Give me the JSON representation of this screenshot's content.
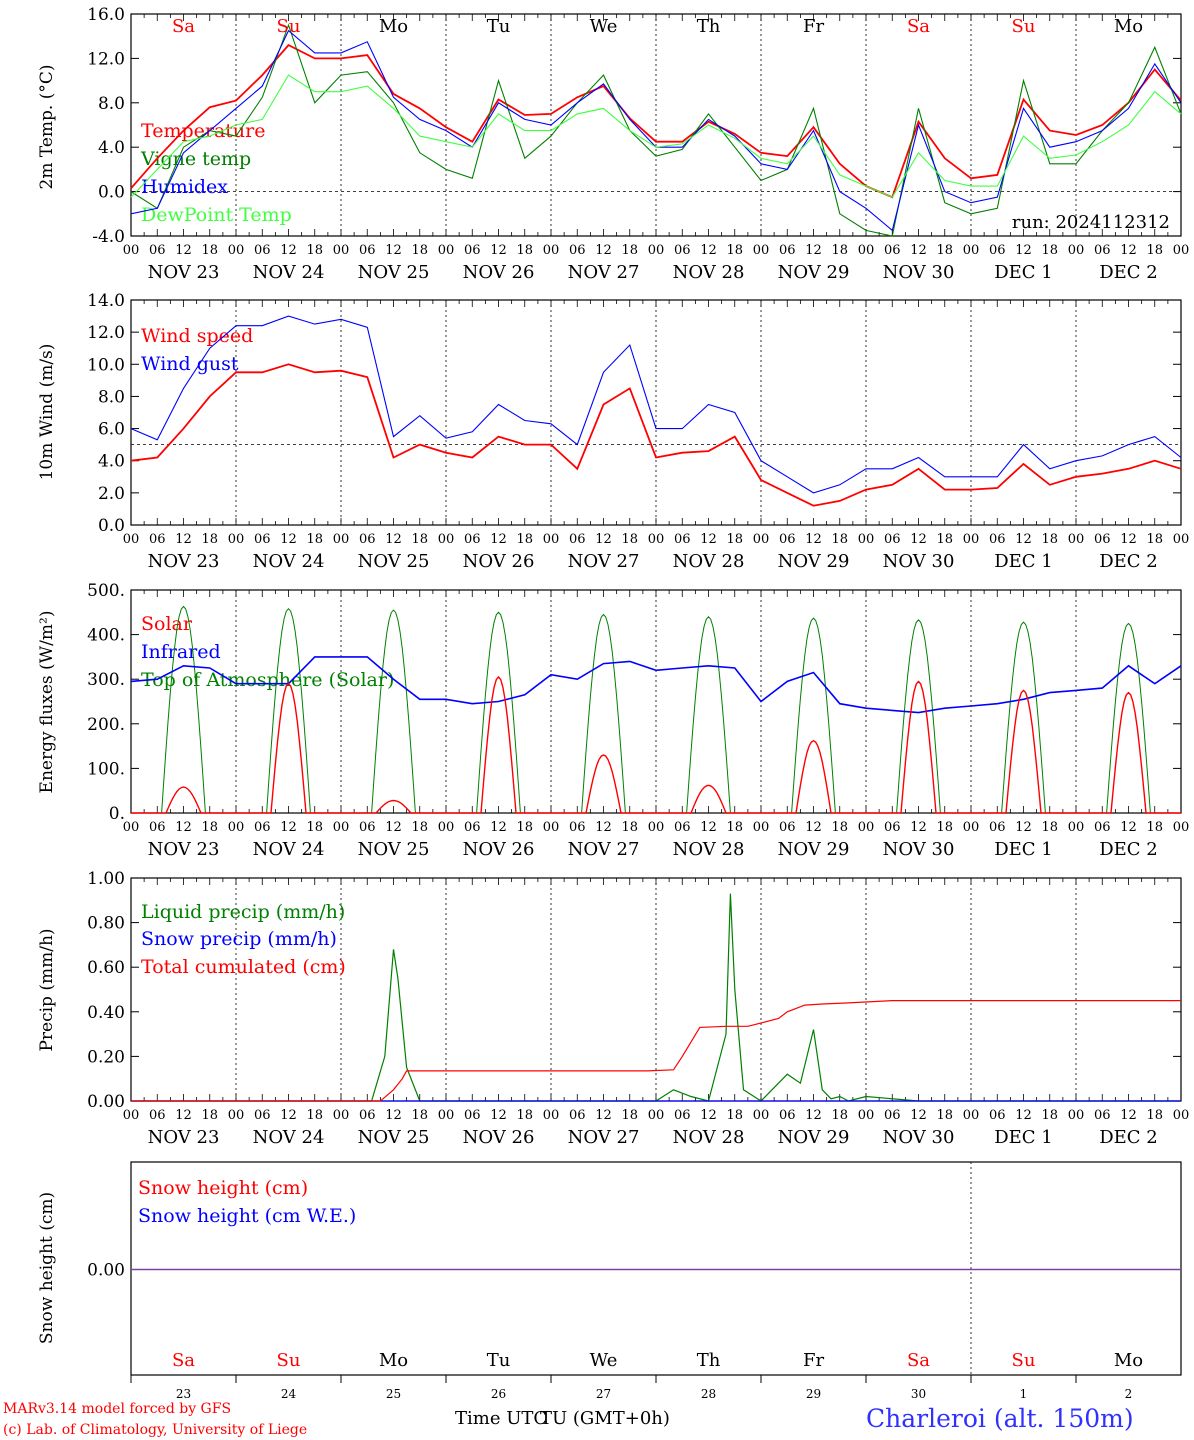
{
  "chart_data": [
    {
      "type": "line",
      "ylabel": "2m Temp. (°C)",
      "ylim": [
        -4,
        16
      ],
      "yticks": [
        "-4.0",
        "0.0",
        "4.0",
        "8.0",
        "12.0",
        "16.0"
      ],
      "ref_line": 0,
      "run_label": "run: 2024112312",
      "x": [
        0,
        6,
        12,
        18,
        24,
        30,
        36,
        42,
        48,
        54,
        60,
        66,
        72,
        78,
        84,
        90,
        96,
        102,
        108,
        114,
        120,
        126,
        132,
        138,
        144,
        150,
        156,
        162,
        168,
        174,
        180,
        186,
        192,
        198,
        204,
        210,
        216,
        222,
        228,
        234,
        240
      ],
      "series": [
        {
          "name": "Temperature",
          "color": "#ff0000",
          "values": [
            0.3,
            3.0,
            5.5,
            7.6,
            8.2,
            10.5,
            13.2,
            12.0,
            12.0,
            12.3,
            8.8,
            7.5,
            5.8,
            4.5,
            8.3,
            6.9,
            7.0,
            8.5,
            9.5,
            6.6,
            4.5,
            4.5,
            6.3,
            5.2,
            3.5,
            3.2,
            5.8,
            2.5,
            0.5,
            -0.5,
            6.3,
            3.0,
            1.2,
            1.5,
            8.3,
            5.5,
            5.1,
            6.0,
            8.0,
            11.0,
            8.2
          ]
        },
        {
          "name": "Vigne temp",
          "color": "#008000",
          "values": [
            0.0,
            -1.5,
            4.0,
            5.5,
            5.0,
            8.5,
            15.0,
            8.0,
            10.5,
            10.8,
            8.0,
            3.5,
            2.0,
            1.2,
            10.0,
            3.0,
            5.0,
            8.0,
            10.5,
            5.5,
            3.2,
            3.8,
            7.0,
            4.0,
            1.0,
            2.0,
            7.5,
            -2.0,
            -3.5,
            -4.0,
            7.5,
            -1.0,
            -2.0,
            -1.5,
            10.0,
            2.5,
            2.5,
            5.5,
            8.0,
            13.0,
            7.0
          ]
        },
        {
          "name": "Humidex",
          "color": "#0000ff",
          "values": [
            -2.0,
            -1.5,
            3.5,
            5.5,
            7.5,
            9.5,
            14.5,
            12.5,
            12.5,
            13.5,
            8.5,
            6.5,
            5.5,
            4.0,
            8.0,
            6.5,
            6.0,
            8.0,
            9.7,
            6.5,
            4.0,
            4.0,
            6.5,
            5.0,
            2.5,
            2.0,
            5.5,
            0.0,
            -1.5,
            -3.5,
            6.0,
            0.0,
            -1.0,
            -0.5,
            7.5,
            4.0,
            4.5,
            5.5,
            7.5,
            11.5,
            8.0
          ]
        },
        {
          "name": "DewPoint Temp",
          "color": "#40ff40",
          "values": [
            -0.5,
            2.0,
            4.5,
            5.0,
            6.0,
            6.5,
            10.5,
            9.0,
            9.0,
            9.5,
            7.5,
            5.0,
            4.5,
            4.0,
            7.0,
            5.5,
            5.5,
            7.0,
            7.5,
            5.5,
            4.0,
            4.3,
            6.0,
            4.8,
            3.0,
            2.5,
            5.0,
            1.5,
            0.5,
            -0.5,
            3.5,
            1.0,
            0.5,
            0.5,
            5.0,
            3.0,
            3.3,
            4.5,
            6.0,
            9.0,
            7.0
          ]
        }
      ]
    },
    {
      "type": "line",
      "ylabel": "10m Wind (m/s)",
      "ylim": [
        0,
        14
      ],
      "yticks": [
        "0.0",
        "2.0",
        "4.0",
        "6.0",
        "8.0",
        "10.0",
        "12.0",
        "14.0"
      ],
      "ref_line": 5,
      "x": [
        0,
        6,
        12,
        18,
        24,
        30,
        36,
        42,
        48,
        54,
        60,
        66,
        72,
        78,
        84,
        90,
        96,
        102,
        108,
        114,
        120,
        126,
        132,
        138,
        144,
        150,
        156,
        162,
        168,
        174,
        180,
        186,
        192,
        198,
        204,
        210,
        216,
        222,
        228,
        234,
        240
      ],
      "series": [
        {
          "name": "Wind speed",
          "color": "#ff0000",
          "values": [
            4.0,
            4.2,
            6.0,
            8.0,
            9.5,
            9.5,
            10.0,
            9.5,
            9.6,
            9.2,
            4.2,
            5.0,
            4.5,
            4.2,
            5.5,
            5.0,
            5.0,
            3.5,
            7.5,
            8.5,
            4.2,
            4.5,
            4.6,
            5.5,
            2.8,
            2.0,
            1.2,
            1.5,
            2.2,
            2.5,
            3.5,
            2.2,
            2.2,
            2.3,
            3.8,
            2.5,
            3.0,
            3.2,
            3.5,
            4.0,
            3.5
          ]
        },
        {
          "name": "Wind gust",
          "color": "#0000ff",
          "values": [
            6.0,
            5.3,
            8.5,
            11.0,
            12.4,
            12.4,
            13.0,
            12.5,
            12.8,
            12.3,
            5.5,
            6.8,
            5.4,
            5.8,
            7.5,
            6.5,
            6.3,
            5.0,
            9.5,
            11.2,
            6.0,
            6.0,
            7.5,
            7.0,
            4.0,
            3.0,
            2.0,
            2.5,
            3.5,
            3.5,
            4.2,
            3.0,
            3.0,
            3.0,
            5.0,
            3.5,
            4.0,
            4.3,
            5.0,
            5.5,
            4.2
          ]
        }
      ]
    },
    {
      "type": "line",
      "ylabel": "Energy fluxes (W/m²)",
      "ylim": [
        0,
        500
      ],
      "yticks": [
        "0.",
        "100.",
        "200.",
        "300.",
        "400.",
        "500."
      ],
      "x_peaks_hours": [
        12,
        36,
        60,
        84,
        108,
        132,
        156,
        180,
        204,
        228
      ],
      "series": [
        {
          "name": "Solar",
          "color": "#ff0000",
          "peaks": [
            58,
            290,
            28,
            305,
            130,
            62,
            162,
            295,
            275,
            270
          ]
        },
        {
          "name": "Infrared",
          "color": "#0000ff",
          "x": [
            0,
            6,
            12,
            18,
            24,
            30,
            36,
            42,
            48,
            54,
            60,
            66,
            72,
            78,
            84,
            90,
            96,
            102,
            108,
            114,
            120,
            126,
            132,
            138,
            144,
            150,
            156,
            162,
            168,
            174,
            180,
            186,
            192,
            198,
            204,
            210,
            216,
            222,
            228,
            234,
            240
          ],
          "values": [
            295,
            300,
            330,
            325,
            290,
            290,
            290,
            350,
            350,
            350,
            300,
            255,
            255,
            245,
            250,
            265,
            310,
            300,
            335,
            340,
            320,
            325,
            330,
            325,
            250,
            295,
            315,
            245,
            235,
            230,
            225,
            235,
            240,
            245,
            255,
            270,
            275,
            280,
            330,
            290,
            330
          ]
        },
        {
          "name": "Top of Atmosphere (Solar)",
          "color": "#008000",
          "peaks": [
            463,
            458,
            455,
            450,
            445,
            440,
            437,
            433,
            428,
            425
          ]
        }
      ]
    },
    {
      "type": "line",
      "ylabel": "Precip (mm/h)",
      "ylim": [
        0,
        1
      ],
      "yticks": [
        "0.00",
        "0.20",
        "0.40",
        "0.60",
        "0.80",
        "1.00"
      ],
      "series": [
        {
          "name": "Liquid precip (mm/h)",
          "color": "#008000",
          "x": [
            0,
            55,
            58,
            60,
            61,
            63,
            66,
            120,
            124,
            128,
            132,
            136,
            137,
            138,
            140,
            144,
            150,
            153,
            156,
            158,
            160,
            162,
            164,
            168,
            180,
            240
          ],
          "values": [
            0,
            0,
            0.2,
            0.68,
            0.55,
            0.15,
            0,
            0,
            0.05,
            0.02,
            0.0,
            0.3,
            0.93,
            0.5,
            0.05,
            0,
            0.12,
            0.08,
            0.32,
            0.05,
            0.01,
            0.02,
            0.0,
            0.02,
            0,
            0
          ]
        },
        {
          "name": "Snow precip (mm/h)",
          "color": "#0000ff",
          "x": [
            0,
            240
          ],
          "values": [
            0,
            0
          ]
        },
        {
          "name": "Total cumulated (cm)",
          "color": "#ff0000",
          "x": [
            0,
            57,
            60,
            62,
            63,
            110,
            118,
            124,
            126,
            130,
            136,
            141,
            148,
            150,
            154,
            158,
            164,
            174,
            178,
            240
          ],
          "values": [
            0,
            0,
            0.05,
            0.1,
            0.135,
            0.135,
            0.135,
            0.14,
            0.2,
            0.33,
            0.335,
            0.335,
            0.37,
            0.4,
            0.43,
            0.435,
            0.44,
            0.45,
            0.45,
            0.45
          ]
        }
      ]
    },
    {
      "type": "line",
      "ylabel": "Snow height (cm)",
      "yticks": [
        "0.00"
      ],
      "series": [
        {
          "name": "Snow height (cm)",
          "color": "#ff0000",
          "x": [
            0,
            240
          ],
          "values": [
            0,
            0
          ]
        },
        {
          "name": "Snow height (cm W.E.)",
          "color": "#0000ff",
          "x": [
            0,
            240
          ],
          "values": [
            0,
            0
          ]
        }
      ]
    }
  ],
  "axis": {
    "hour_ticks": [
      "00",
      "06",
      "12",
      "18"
    ],
    "final_tick": "00",
    "date_labels": [
      "NOV 23",
      "NOV 24",
      "NOV 25",
      "NOV 26",
      "NOV 27",
      "NOV 28",
      "NOV 29",
      "NOV 30",
      "DEC  1",
      "DEC  2"
    ],
    "day_names": [
      "Sa",
      "Su",
      "Mo",
      "Tu",
      "We",
      "Th",
      "Fr",
      "Sa",
      "Su",
      "Mo"
    ],
    "day_weekend": [
      true,
      true,
      false,
      false,
      false,
      false,
      false,
      true,
      true,
      false
    ],
    "day_numbers": [
      "23",
      "24",
      "25",
      "26",
      "27",
      "28",
      "29",
      "30",
      "1",
      "2"
    ],
    "xlabel_a": "Time UTC",
    "xlabel_b": "TU (GMT+0h)"
  },
  "footer": {
    "credit_line1": "MARv3.14 model forced by GFS",
    "credit_line2": "(c) Lab. of Climatology, University of Liege",
    "location": "Charleroi (alt. 150m)"
  },
  "colors": {
    "red": "#ff0000",
    "green": "#008000",
    "blue": "#0000ff",
    "light_green": "#40ff40",
    "snow_line": "#8040a0",
    "location_blue": "#3030ff"
  }
}
